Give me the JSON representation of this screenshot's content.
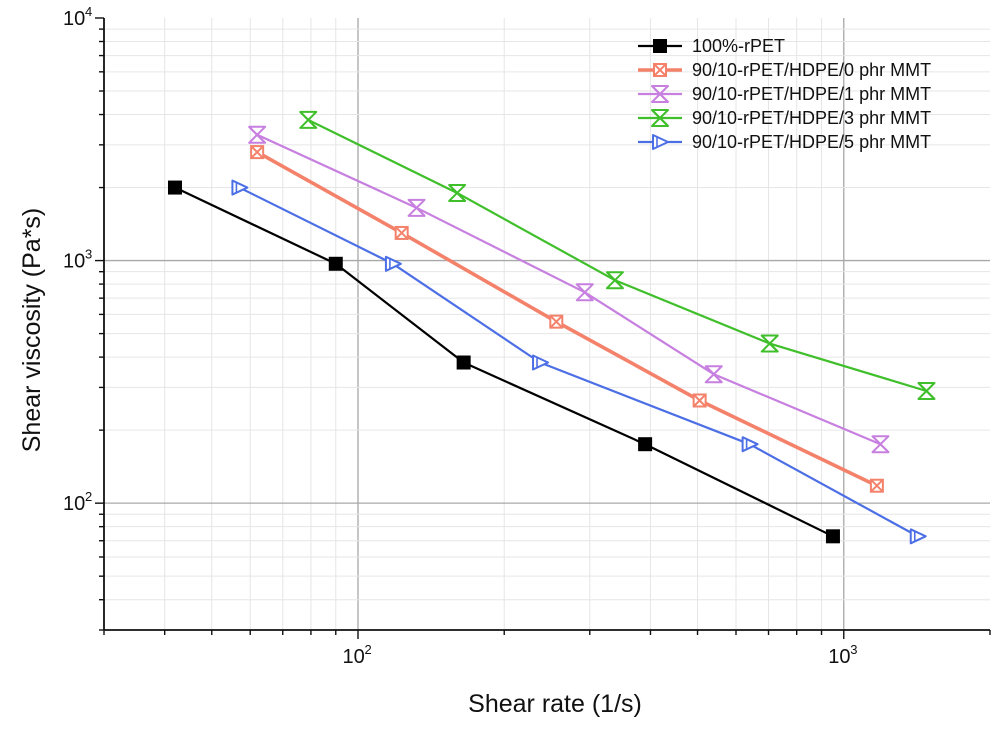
{
  "chart_data": {
    "type": "line",
    "xlabel": "Shear rate (1/s)",
    "ylabel": "Shear viscosity (Pa*s)",
    "x_scale": "log",
    "y_scale": "log",
    "xlim": [
      30,
      2000
    ],
    "ylim": [
      30,
      10000
    ],
    "grid": true,
    "legend_position": "top-right",
    "x_ticks": [
      {
        "value": 100,
        "base": "10",
        "exp": "2"
      },
      {
        "value": 1000,
        "base": "10",
        "exp": "3"
      }
    ],
    "y_ticks": [
      {
        "value": 100,
        "base": "10",
        "exp": "2"
      },
      {
        "value": 1000,
        "base": "10",
        "exp": "3"
      },
      {
        "value": 10000,
        "base": "10",
        "exp": "4"
      }
    ],
    "series": [
      {
        "name": "100%-rPET",
        "color": "#000000",
        "marker": "square-filled",
        "x": [
          42,
          90,
          165,
          390,
          950
        ],
        "y": [
          2000,
          970,
          380,
          175,
          73
        ]
      },
      {
        "name": "90/10-rPET/HDPE/0 phr MMT",
        "color": "#f4826b",
        "marker": "square-cross",
        "x": [
          62,
          123,
          256,
          505,
          1170
        ],
        "y": [
          2800,
          1300,
          560,
          265,
          118
        ]
      },
      {
        "name": "90/10-rPET/HDPE/1 phr MMT",
        "color": "#c77fe0",
        "marker": "hourglass",
        "x": [
          62,
          132,
          293,
          540,
          1190
        ],
        "y": [
          3300,
          1650,
          740,
          340,
          175
        ]
      },
      {
        "name": "90/10-rPET/HDPE/3 phr MMT",
        "color": "#3fbf2a",
        "marker": "hourglass",
        "x": [
          79,
          160,
          338,
          704,
          1480
        ],
        "y": [
          3800,
          1900,
          830,
          455,
          290
        ]
      },
      {
        "name": "90/10-rPET/HDPE/5 phr MMT",
        "color": "#4d6fe6",
        "marker": "triangle-right",
        "x": [
          57,
          118,
          237,
          640,
          1420
        ],
        "y": [
          2000,
          970,
          380,
          175,
          73
        ]
      }
    ]
  }
}
